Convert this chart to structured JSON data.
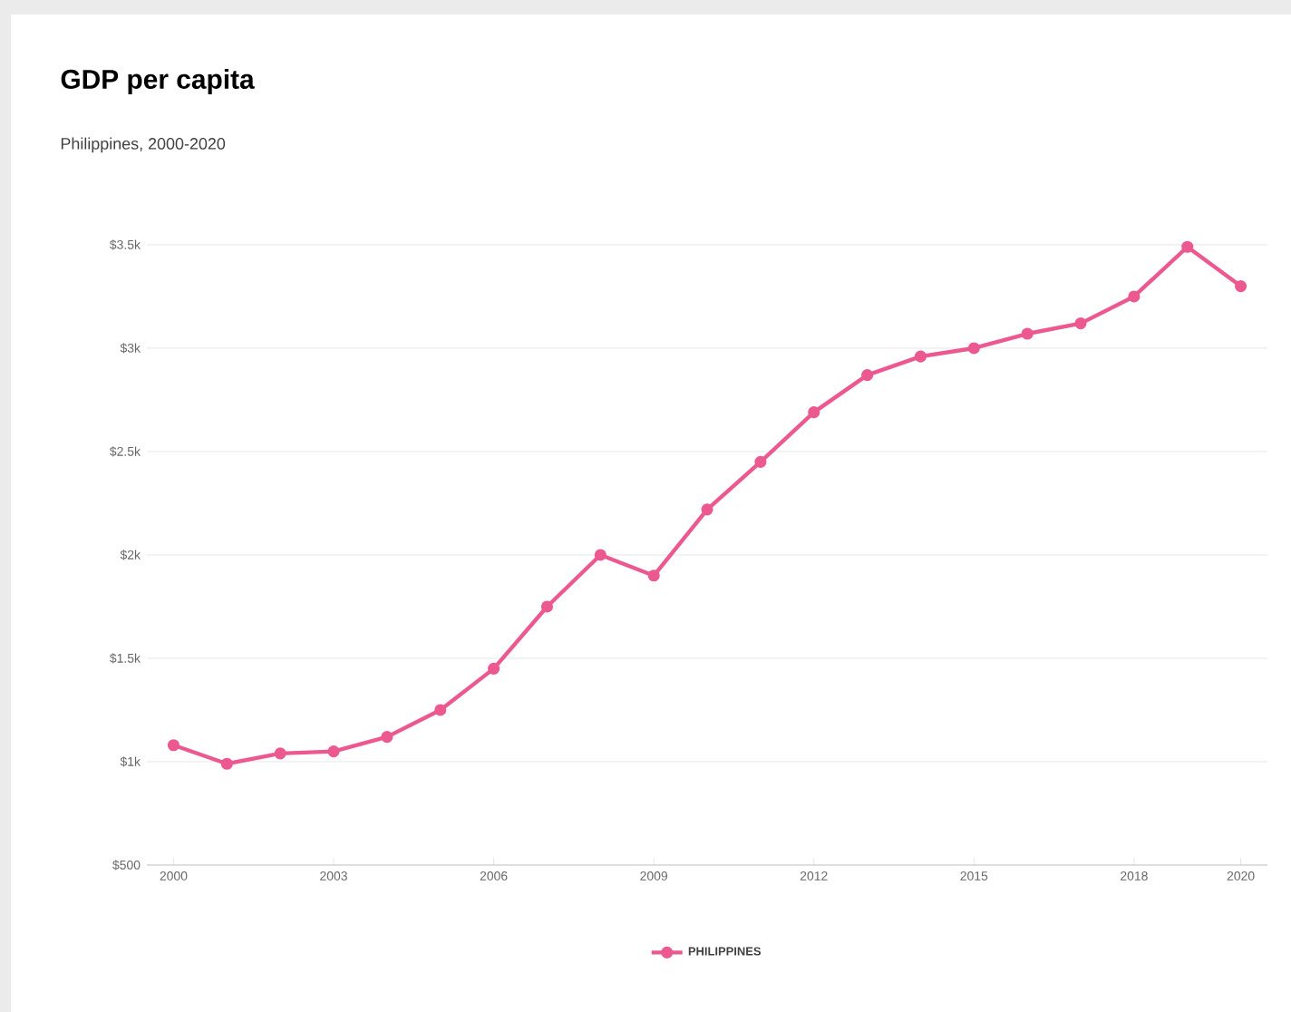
{
  "chart_data": {
    "type": "line",
    "title": "GDP per capita",
    "subtitle": "Philippines, 2000-2020",
    "x": [
      2000,
      2001,
      2002,
      2003,
      2004,
      2005,
      2006,
      2007,
      2008,
      2009,
      2010,
      2011,
      2012,
      2013,
      2014,
      2015,
      2016,
      2017,
      2018,
      2019,
      2020
    ],
    "series": [
      {
        "name": "PHILIPPINES",
        "color": "#ec5990",
        "values": [
          1080,
          990,
          1040,
          1050,
          1120,
          1250,
          1450,
          1750,
          2000,
          1900,
          2220,
          2450,
          2690,
          2870,
          2960,
          3000,
          3070,
          3120,
          3250,
          3490,
          3300
        ]
      }
    ],
    "xlim": [
      1999.5,
      2020.5
    ],
    "ylim": [
      500,
      3500
    ],
    "xticks": [
      2000,
      2003,
      2006,
      2009,
      2012,
      2015,
      2018,
      2020
    ],
    "yticks": [
      {
        "value": 500,
        "label": "$500"
      },
      {
        "value": 1000,
        "label": "$1k"
      },
      {
        "value": 1500,
        "label": "$1.5k"
      },
      {
        "value": 2000,
        "label": "$2k"
      },
      {
        "value": 2500,
        "label": "$2.5k"
      },
      {
        "value": 3000,
        "label": "$3k"
      },
      {
        "value": 3500,
        "label": "$3.5k"
      }
    ],
    "grid": "y",
    "legend": "bottom",
    "marker": "circle",
    "line_style": "solid"
  }
}
